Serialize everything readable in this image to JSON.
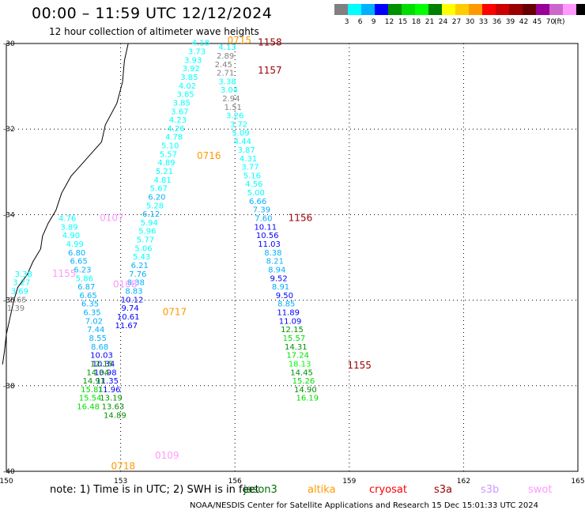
{
  "header": {
    "title": "00:00 – 11:59 UTC 12/12/2024",
    "subtitle": "12 hour collection of altimeter wave heights"
  },
  "colorbar": {
    "colors": [
      "#808080",
      "#00ffff",
      "#00b0ff",
      "#0000ff",
      "#009000",
      "#00dd00",
      "#00ff00",
      "#008000",
      "#ffff00",
      "#ffcc00",
      "#ff9900",
      "#ff0000",
      "#cc0000",
      "#990000",
      "#660000",
      "#990099",
      "#cc66cc",
      "#ff99ff",
      "#000000"
    ],
    "labels": [
      "3",
      "6",
      "9",
      "12",
      "15",
      "18",
      "21",
      "24",
      "27",
      "30",
      "33",
      "36",
      "39",
      "42",
      "45",
      "70",
      "(ft)"
    ]
  },
  "note": "note: 1) Time is in UTC; 2) SWH is in feet",
  "legend": [
    {
      "label": "jason3",
      "color": "#007000"
    },
    {
      "label": "altika",
      "color": "#ff9900"
    },
    {
      "label": "cryosat",
      "color": "#ff0000"
    },
    {
      "label": "s3a",
      "color": "#990000"
    },
    {
      "label": "s3b",
      "color": "#cc99ff"
    },
    {
      "label": "swot",
      "color": "#ff99ff"
    }
  ],
  "footer": "NOAA/NESDIS Center for Satellite Applications and Research    15 Dec 15:01:33 UTC 2024",
  "chart_data": {
    "type": "scatter",
    "title": "00:00 – 11:59 UTC 12/12/2024",
    "subtitle": "12 hour collection of altimeter wave heights",
    "xlabel": "",
    "ylabel": "",
    "x_ticks": [
      "150",
      "153",
      "156",
      "159",
      "162",
      "165"
    ],
    "y_ticks": [
      "-30",
      "-32",
      "-34",
      "-36",
      "-38",
      "-40"
    ],
    "xlim": [
      150,
      165
    ],
    "ylim": [
      -40,
      -30
    ],
    "grid": true,
    "color_scale": {
      "thresholds": [
        3,
        6,
        9,
        12,
        15,
        18,
        21,
        24,
        27,
        30,
        33,
        36,
        39,
        42,
        45,
        70
      ],
      "colors": [
        "#808080",
        "#00ffff",
        "#00b0ff",
        "#0000ff",
        "#009000",
        "#00dd00",
        "#00ff00",
        "#008000",
        "#ffff00",
        "#ffcc00",
        "#ff9900",
        "#ff0000",
        "#cc0000",
        "#990000",
        "#660000",
        "#990099",
        "#cc66cc",
        "#ff99ff",
        "#000000"
      ]
    },
    "series": [
      {
        "name": "swot",
        "points": [
          [
            155.1,
            -30.05,
            "4.18"
          ],
          [
            155.0,
            -30.25,
            "3.73"
          ],
          [
            154.9,
            -30.45,
            "3.93"
          ],
          [
            154.85,
            -30.65,
            "3.92"
          ],
          [
            154.8,
            -30.85,
            "3.85"
          ],
          [
            154.75,
            -31.05,
            "4.02"
          ],
          [
            154.7,
            -31.25,
            "3.85"
          ],
          [
            154.6,
            -31.45,
            "3.85"
          ],
          [
            154.55,
            -31.65,
            "3.67"
          ],
          [
            154.5,
            -31.85,
            "4.23"
          ],
          [
            154.45,
            -32.05,
            "4.26"
          ],
          [
            154.4,
            -32.25,
            "4.78"
          ],
          [
            154.3,
            -32.45,
            "5.10"
          ],
          [
            154.25,
            -32.65,
            "5.57"
          ],
          [
            154.2,
            -32.85,
            "4.89"
          ],
          [
            154.15,
            -33.05,
            "5.21"
          ],
          [
            154.1,
            -33.25,
            "4.81"
          ],
          [
            154.0,
            -33.45,
            "5.67"
          ],
          [
            153.95,
            -33.65,
            "6.20"
          ],
          [
            153.9,
            -33.85,
            "5.28"
          ],
          [
            153.8,
            -34.05,
            "6.12"
          ],
          [
            153.75,
            -34.25,
            "5.94"
          ],
          [
            153.7,
            -34.45,
            "5.96"
          ],
          [
            153.65,
            -34.65,
            "5.77"
          ],
          [
            153.6,
            -34.85,
            "5.06"
          ],
          [
            153.55,
            -35.05,
            "5.43"
          ],
          [
            153.5,
            -35.25,
            "6.21"
          ],
          [
            153.45,
            -35.45,
            "7.76"
          ],
          [
            153.4,
            -35.65,
            "8.38"
          ],
          [
            153.35,
            -35.85,
            "8.83"
          ],
          [
            153.3,
            -36.05,
            "10.12"
          ],
          [
            153.25,
            -36.25,
            "9.74"
          ],
          [
            153.2,
            -36.45,
            "10.61"
          ],
          [
            153.15,
            -36.65,
            "11.67"
          ]
        ]
      },
      {
        "name": "swot",
        "points": [
          [
            151.6,
            -34.15,
            "4.76"
          ],
          [
            151.65,
            -34.35,
            "3.89"
          ],
          [
            151.7,
            -34.55,
            "4.90"
          ],
          [
            151.8,
            -34.75,
            "4.99"
          ],
          [
            151.85,
            -34.95,
            "6.80"
          ],
          [
            151.9,
            -35.15,
            "6.65"
          ],
          [
            152.0,
            -35.35,
            "6.23"
          ],
          [
            152.05,
            -35.55,
            "5.86"
          ],
          [
            152.1,
            -35.75,
            "6.87"
          ],
          [
            152.15,
            -35.95,
            "6.65"
          ],
          [
            152.2,
            -36.15,
            "6.35"
          ],
          [
            152.25,
            -36.35,
            "6.35"
          ],
          [
            152.3,
            -36.55,
            "7.02"
          ],
          [
            152.35,
            -36.75,
            "7.44"
          ],
          [
            152.4,
            -36.95,
            "8.55"
          ],
          [
            152.45,
            -37.15,
            "8.68"
          ],
          [
            152.5,
            -37.35,
            "10.03"
          ],
          [
            152.55,
            -37.55,
            "10.34"
          ],
          [
            152.6,
            -37.75,
            "10.98"
          ],
          [
            152.65,
            -37.95,
            "11.35"
          ],
          [
            152.7,
            -38.15,
            "11.96"
          ],
          [
            152.75,
            -38.35,
            "13.19"
          ],
          [
            152.8,
            -38.55,
            "13.63"
          ],
          [
            152.85,
            -38.75,
            "14.89"
          ]
        ]
      },
      {
        "name": "jason3",
        "points": [
          [
            152.5,
            -37.55,
            "12.15"
          ],
          [
            152.4,
            -37.75,
            "14.34"
          ],
          [
            152.3,
            -37.95,
            "14.91"
          ],
          [
            152.25,
            -38.15,
            "15.81"
          ],
          [
            152.2,
            -38.35,
            "15.54"
          ],
          [
            152.15,
            -38.55,
            "16.48"
          ]
        ]
      },
      {
        "name": "s3a",
        "points": [
          [
            155.8,
            -30.15,
            "4.13"
          ],
          [
            155.75,
            -30.35,
            "2.89"
          ],
          [
            155.7,
            -30.55,
            "2.45"
          ],
          [
            155.75,
            -30.75,
            "2.71"
          ],
          [
            155.8,
            -30.95,
            "3.38"
          ],
          [
            155.85,
            -31.15,
            "3.04"
          ],
          [
            155.9,
            -31.35,
            "2.94"
          ],
          [
            155.95,
            -31.55,
            "1.51"
          ],
          [
            156.0,
            -31.75,
            "3.26"
          ],
          [
            156.1,
            -31.95,
            "3.72"
          ],
          [
            156.15,
            -32.15,
            "5.09"
          ],
          [
            156.2,
            -32.35,
            "4.44"
          ],
          [
            156.3,
            -32.55,
            "3.87"
          ],
          [
            156.35,
            -32.75,
            "4.31"
          ],
          [
            156.4,
            -32.95,
            "3.77"
          ],
          [
            156.45,
            -33.15,
            "5.16"
          ],
          [
            156.5,
            -33.35,
            "4.56"
          ],
          [
            156.55,
            -33.55,
            "5.00"
          ],
          [
            156.6,
            -33.75,
            "6.66"
          ],
          [
            156.7,
            -33.95,
            "7.39"
          ],
          [
            156.75,
            -34.15,
            "7.60"
          ],
          [
            156.8,
            -34.35,
            "10.11"
          ],
          [
            156.85,
            -34.55,
            "10.56"
          ],
          [
            156.9,
            -34.75,
            "11.03"
          ],
          [
            157.0,
            -34.95,
            "8.38"
          ],
          [
            157.05,
            -35.15,
            "8.21"
          ],
          [
            157.1,
            -35.35,
            "8.94"
          ],
          [
            157.15,
            -35.55,
            "9.52"
          ],
          [
            157.2,
            -35.75,
            "8.91"
          ],
          [
            157.3,
            -35.95,
            "9.50"
          ],
          [
            157.35,
            -36.15,
            "8.85"
          ],
          [
            157.4,
            -36.35,
            "11.89"
          ],
          [
            157.45,
            -36.55,
            "11.09"
          ],
          [
            157.5,
            -36.75,
            "12.15"
          ],
          [
            157.55,
            -36.95,
            "15.57"
          ],
          [
            157.6,
            -37.15,
            "14.31"
          ],
          [
            157.65,
            -37.35,
            "17.24"
          ],
          [
            157.7,
            -37.55,
            "18.13"
          ],
          [
            157.75,
            -37.75,
            "14.45"
          ],
          [
            157.8,
            -37.95,
            "15.26"
          ],
          [
            157.85,
            -38.15,
            "14.90"
          ],
          [
            157.9,
            -38.35,
            "16.19"
          ]
        ]
      },
      {
        "name": "other",
        "points": [
          [
            150.45,
            -35.45,
            "3.38"
          ],
          [
            150.4,
            -35.65,
            "3.27"
          ],
          [
            150.35,
            -35.85,
            "3.69"
          ],
          [
            150.3,
            -36.05,
            "2.65"
          ],
          [
            150.25,
            -36.25,
            "1.39"
          ]
        ]
      }
    ],
    "time_labels": [
      {
        "text": "0715",
        "color": "#ff9900",
        "x": 155.8,
        "y": -30.0
      },
      {
        "text": "1158",
        "color": "#990000",
        "x": 156.6,
        "y": -30.05
      },
      {
        "text": "1157",
        "color": "#990000",
        "x": 156.6,
        "y": -30.7
      },
      {
        "text": "0716",
        "color": "#ff9900",
        "x": 155.0,
        "y": -32.7
      },
      {
        "text": "0107",
        "color": "#ff99ff",
        "x": 152.45,
        "y": -34.15
      },
      {
        "text": "1156",
        "color": "#990000",
        "x": 157.4,
        "y": -34.15
      },
      {
        "text": "1155",
        "color": "#ff99ff",
        "x": 151.2,
        "y": -35.45
      },
      {
        "text": "0108",
        "color": "#ff99ff",
        "x": 152.8,
        "y": -35.7
      },
      {
        "text": "0717",
        "color": "#ff9900",
        "x": 154.1,
        "y": -36.35
      },
      {
        "text": "1155",
        "color": "#990000",
        "x": 158.95,
        "y": -37.6
      },
      {
        "text": "0109",
        "color": "#ff99ff",
        "x": 153.9,
        "y": -39.7
      },
      {
        "text": "0718",
        "color": "#ff9900",
        "x": 152.75,
        "y": -39.95
      }
    ]
  }
}
